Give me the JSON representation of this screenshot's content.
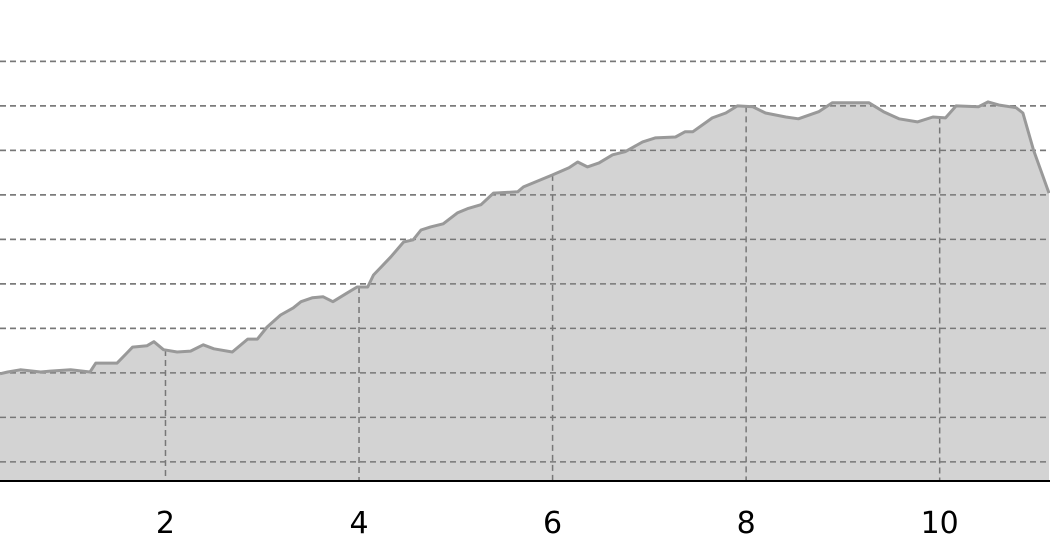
{
  "chart_data": {
    "type": "area",
    "title": "",
    "xlabel": "",
    "ylabel": "",
    "xlim": [
      0.29,
      11.14
    ],
    "ylim": [
      -0.43,
      10.38
    ],
    "x_ticks": [
      2,
      4,
      6,
      8,
      10
    ],
    "x_tick_labels": [
      "2",
      "4",
      "6",
      "8",
      "10"
    ],
    "y_gridlines": [
      0,
      1,
      2,
      3,
      4,
      5,
      6,
      7,
      8,
      9
    ],
    "grid": true,
    "y_tick_labels_visible": false,
    "colors": {
      "fill": "#d3d3d3",
      "line": "#999999",
      "grid": "#777777",
      "axis": "#000000"
    },
    "x": [
      0.29,
      0.37,
      0.5,
      0.71,
      0.81,
      1.02,
      1.22,
      1.28,
      1.5,
      1.66,
      1.81,
      1.88,
      1.98,
      2.12,
      2.26,
      2.39,
      2.5,
      2.69,
      2.85,
      2.95,
      3.05,
      3.19,
      3.32,
      3.4,
      3.52,
      3.63,
      3.73,
      3.88,
      3.98,
      4.09,
      4.15,
      4.33,
      4.46,
      4.56,
      4.64,
      4.74,
      4.87,
      5.02,
      5.12,
      5.26,
      5.39,
      5.64,
      5.7,
      6.0,
      6.17,
      6.26,
      6.36,
      6.48,
      6.62,
      6.75,
      6.93,
      7.06,
      7.27,
      7.37,
      7.45,
      7.65,
      7.79,
      7.91,
      8.07,
      8.2,
      8.41,
      8.54,
      8.75,
      8.89,
      9.27,
      9.42,
      9.58,
      9.77,
      9.93,
      10.06,
      10.17,
      10.4,
      10.5,
      10.61,
      10.79,
      10.86,
      10.97,
      11.13
    ],
    "y": [
      1.98,
      2.02,
      2.07,
      2.02,
      2.04,
      2.07,
      2.02,
      2.22,
      2.22,
      2.58,
      2.61,
      2.7,
      2.52,
      2.47,
      2.49,
      2.63,
      2.54,
      2.47,
      2.76,
      2.76,
      3.03,
      3.3,
      3.46,
      3.6,
      3.69,
      3.71,
      3.6,
      3.8,
      3.93,
      3.93,
      4.2,
      4.61,
      4.94,
      4.99,
      5.21,
      5.28,
      5.35,
      5.6,
      5.69,
      5.78,
      6.04,
      6.07,
      6.18,
      6.45,
      6.61,
      6.74,
      6.63,
      6.72,
      6.9,
      6.97,
      7.19,
      7.28,
      7.3,
      7.42,
      7.42,
      7.73,
      7.84,
      8.0,
      7.98,
      7.84,
      7.75,
      7.71,
      7.87,
      8.07,
      8.07,
      7.87,
      7.71,
      7.64,
      7.75,
      7.73,
      8.0,
      7.98,
      8.09,
      8.02,
      7.96,
      7.84,
      7.01,
      6.04
    ]
  }
}
